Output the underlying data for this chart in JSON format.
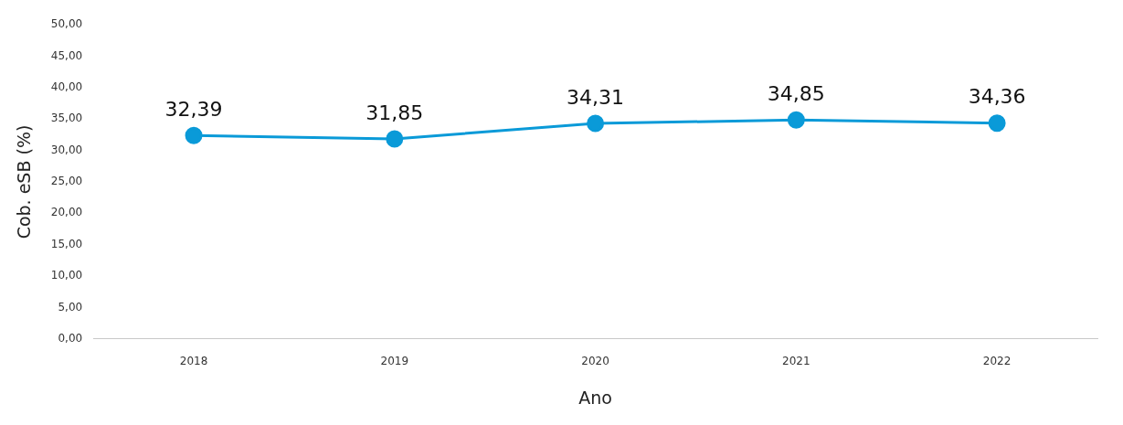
{
  "chart_data": {
    "type": "line",
    "xlabel": "Ano",
    "ylabel": "Cob. eSB (%)",
    "categories": [
      "2018",
      "2019",
      "2020",
      "2021",
      "2022"
    ],
    "series": [
      {
        "color": "#0a9ad8",
        "values": [
          32.39,
          31.85,
          34.31,
          34.85,
          34.36
        ],
        "value_labels": [
          "32,39",
          "31,85",
          "34,31",
          "34,85",
          "34,36"
        ]
      }
    ],
    "ylim": [
      0,
      50
    ],
    "yticks": [
      {
        "value": 0,
        "label": "0,00"
      },
      {
        "value": 5,
        "label": "5,00"
      },
      {
        "value": 10,
        "label": "10,00"
      },
      {
        "value": 15,
        "label": "15,00"
      },
      {
        "value": 20,
        "label": "20,00"
      },
      {
        "value": 25,
        "label": "25,00"
      },
      {
        "value": 30,
        "label": "30,00"
      },
      {
        "value": 35,
        "label": "35,00"
      },
      {
        "value": 40,
        "label": "40,00"
      },
      {
        "value": 45,
        "label": "45,00"
      },
      {
        "value": 50,
        "label": "50,00"
      }
    ],
    "grid": false,
    "legend": false,
    "marker": "circle",
    "line_style": "solid"
  }
}
